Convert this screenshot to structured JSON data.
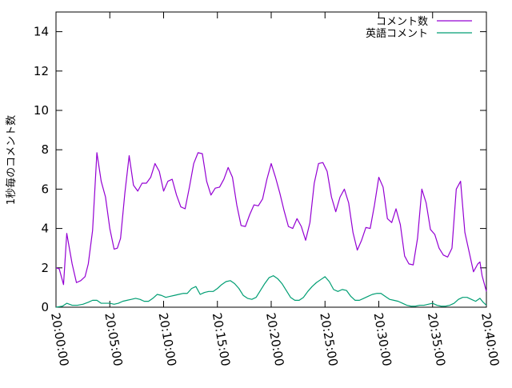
{
  "chart_data": {
    "type": "line",
    "title": "",
    "xlabel": "",
    "ylabel": "1秒毎のコメント数",
    "ylim": [
      0,
      15
    ],
    "yticks": [
      0,
      2,
      4,
      6,
      8,
      10,
      12,
      14
    ],
    "xlim_minutes": [
      0,
      40
    ],
    "xtick_labels": [
      "20:00:00",
      "20:05:00",
      "20:10:00",
      "20:15:00",
      "20:20:00",
      "20:25:00",
      "20:30:00",
      "20:35:00",
      "20:40:00"
    ],
    "xtick_minutes": [
      0,
      5,
      10,
      15,
      20,
      25,
      30,
      35,
      40
    ],
    "legend_position": "top-right",
    "grid": false,
    "series": [
      {
        "name": "コメント数",
        "color": "#9400D3",
        "points": [
          [
            0,
            2
          ],
          [
            0.3,
            1.95
          ],
          [
            0.7,
            1.15
          ],
          [
            1.0,
            3.75
          ],
          [
            1.5,
            2.2
          ],
          [
            1.9,
            1.25
          ],
          [
            2.3,
            1.35
          ],
          [
            2.7,
            1.55
          ],
          [
            3.0,
            2.2
          ],
          [
            3.4,
            3.9
          ],
          [
            3.8,
            7.85
          ],
          [
            4.2,
            6.4
          ],
          [
            4.6,
            5.6
          ],
          [
            5.0,
            4.0
          ],
          [
            5.4,
            2.95
          ],
          [
            5.7,
            3.0
          ],
          [
            6.0,
            3.5
          ],
          [
            6.4,
            5.8
          ],
          [
            6.8,
            7.7
          ],
          [
            7.2,
            6.2
          ],
          [
            7.6,
            5.9
          ],
          [
            8.0,
            6.3
          ],
          [
            8.4,
            6.3
          ],
          [
            8.8,
            6.6
          ],
          [
            9.2,
            7.3
          ],
          [
            9.6,
            6.9
          ],
          [
            10.0,
            5.9
          ],
          [
            10.4,
            6.4
          ],
          [
            10.8,
            6.5
          ],
          [
            11.2,
            5.7
          ],
          [
            11.6,
            5.1
          ],
          [
            12.0,
            5.0
          ],
          [
            12.4,
            6.1
          ],
          [
            12.8,
            7.3
          ],
          [
            13.2,
            7.85
          ],
          [
            13.6,
            7.8
          ],
          [
            14.0,
            6.4
          ],
          [
            14.4,
            5.7
          ],
          [
            14.8,
            6.05
          ],
          [
            15.2,
            6.1
          ],
          [
            15.6,
            6.5
          ],
          [
            16.0,
            7.1
          ],
          [
            16.4,
            6.6
          ],
          [
            16.8,
            5.2
          ],
          [
            17.2,
            4.15
          ],
          [
            17.6,
            4.1
          ],
          [
            18.0,
            4.7
          ],
          [
            18.4,
            5.2
          ],
          [
            18.8,
            5.15
          ],
          [
            19.2,
            5.5
          ],
          [
            19.6,
            6.5
          ],
          [
            20.0,
            7.3
          ],
          [
            20.4,
            6.6
          ],
          [
            20.8,
            5.8
          ],
          [
            21.2,
            4.9
          ],
          [
            21.6,
            4.1
          ],
          [
            22.0,
            4.0
          ],
          [
            22.4,
            4.5
          ],
          [
            22.8,
            4.1
          ],
          [
            23.2,
            3.4
          ],
          [
            23.6,
            4.3
          ],
          [
            24.0,
            6.3
          ],
          [
            24.4,
            7.3
          ],
          [
            24.8,
            7.35
          ],
          [
            25.2,
            6.9
          ],
          [
            25.6,
            5.6
          ],
          [
            26.0,
            4.85
          ],
          [
            26.4,
            5.6
          ],
          [
            26.8,
            6.0
          ],
          [
            27.2,
            5.3
          ],
          [
            27.6,
            3.8
          ],
          [
            28.0,
            2.9
          ],
          [
            28.4,
            3.4
          ],
          [
            28.8,
            4.05
          ],
          [
            29.2,
            4.0
          ],
          [
            29.6,
            5.2
          ],
          [
            30.0,
            6.6
          ],
          [
            30.4,
            6.1
          ],
          [
            30.8,
            4.5
          ],
          [
            31.2,
            4.3
          ],
          [
            31.6,
            5.0
          ],
          [
            32.0,
            4.2
          ],
          [
            32.4,
            2.6
          ],
          [
            32.8,
            2.2
          ],
          [
            33.2,
            2.15
          ],
          [
            33.6,
            3.5
          ],
          [
            34.0,
            6.0
          ],
          [
            34.4,
            5.3
          ],
          [
            34.8,
            3.95
          ],
          [
            35.2,
            3.7
          ],
          [
            35.6,
            3.0
          ],
          [
            36.0,
            2.65
          ],
          [
            36.4,
            2.55
          ],
          [
            36.8,
            3.0
          ],
          [
            37.2,
            6.0
          ],
          [
            37.6,
            6.4
          ],
          [
            38.0,
            3.8
          ],
          [
            38.4,
            2.8
          ],
          [
            38.8,
            1.8
          ],
          [
            39.2,
            2.2
          ],
          [
            39.4,
            2.3
          ],
          [
            39.6,
            1.6
          ],
          [
            40.0,
            0.8
          ]
        ]
      },
      {
        "name": "英語コメント",
        "color": "#009E73",
        "points": [
          [
            0,
            0
          ],
          [
            0.6,
            0.05
          ],
          [
            1.0,
            0.2
          ],
          [
            1.5,
            0.1
          ],
          [
            2.0,
            0.1
          ],
          [
            2.5,
            0.15
          ],
          [
            3.0,
            0.25
          ],
          [
            3.4,
            0.35
          ],
          [
            3.8,
            0.35
          ],
          [
            4.2,
            0.2
          ],
          [
            4.6,
            0.2
          ],
          [
            5.0,
            0.2
          ],
          [
            5.4,
            0.15
          ],
          [
            5.8,
            0.2
          ],
          [
            6.2,
            0.3
          ],
          [
            6.6,
            0.35
          ],
          [
            7.0,
            0.4
          ],
          [
            7.4,
            0.45
          ],
          [
            7.8,
            0.4
          ],
          [
            8.2,
            0.3
          ],
          [
            8.6,
            0.3
          ],
          [
            9.0,
            0.45
          ],
          [
            9.4,
            0.65
          ],
          [
            9.8,
            0.6
          ],
          [
            10.2,
            0.5
          ],
          [
            10.6,
            0.55
          ],
          [
            11.0,
            0.6
          ],
          [
            11.4,
            0.65
          ],
          [
            11.8,
            0.7
          ],
          [
            12.2,
            0.7
          ],
          [
            12.6,
            0.95
          ],
          [
            13.0,
            1.05
          ],
          [
            13.4,
            0.65
          ],
          [
            13.8,
            0.75
          ],
          [
            14.2,
            0.8
          ],
          [
            14.6,
            0.8
          ],
          [
            15.0,
            0.95
          ],
          [
            15.4,
            1.15
          ],
          [
            15.8,
            1.3
          ],
          [
            16.2,
            1.35
          ],
          [
            16.6,
            1.2
          ],
          [
            17.0,
            0.95
          ],
          [
            17.4,
            0.6
          ],
          [
            17.8,
            0.45
          ],
          [
            18.2,
            0.4
          ],
          [
            18.6,
            0.5
          ],
          [
            19.0,
            0.85
          ],
          [
            19.4,
            1.2
          ],
          [
            19.8,
            1.5
          ],
          [
            20.2,
            1.6
          ],
          [
            20.6,
            1.45
          ],
          [
            21.0,
            1.2
          ],
          [
            21.4,
            0.85
          ],
          [
            21.8,
            0.5
          ],
          [
            22.2,
            0.35
          ],
          [
            22.6,
            0.35
          ],
          [
            23.0,
            0.5
          ],
          [
            23.4,
            0.8
          ],
          [
            23.8,
            1.05
          ],
          [
            24.2,
            1.25
          ],
          [
            24.6,
            1.4
          ],
          [
            25.0,
            1.55
          ],
          [
            25.4,
            1.3
          ],
          [
            25.8,
            0.9
          ],
          [
            26.2,
            0.8
          ],
          [
            26.6,
            0.9
          ],
          [
            27.0,
            0.85
          ],
          [
            27.4,
            0.55
          ],
          [
            27.8,
            0.35
          ],
          [
            28.2,
            0.35
          ],
          [
            28.6,
            0.45
          ],
          [
            29.0,
            0.55
          ],
          [
            29.4,
            0.65
          ],
          [
            29.8,
            0.7
          ],
          [
            30.2,
            0.7
          ],
          [
            30.6,
            0.55
          ],
          [
            31.0,
            0.4
          ],
          [
            31.4,
            0.35
          ],
          [
            31.8,
            0.3
          ],
          [
            32.2,
            0.2
          ],
          [
            32.6,
            0.1
          ],
          [
            33.0,
            0.05
          ],
          [
            33.4,
            0.05
          ],
          [
            33.8,
            0.1
          ],
          [
            34.2,
            0.1
          ],
          [
            34.6,
            0.15
          ],
          [
            35.0,
            0.2
          ],
          [
            35.4,
            0.1
          ],
          [
            35.8,
            0.05
          ],
          [
            36.2,
            0.05
          ],
          [
            36.6,
            0.1
          ],
          [
            37.0,
            0.2
          ],
          [
            37.4,
            0.4
          ],
          [
            37.8,
            0.5
          ],
          [
            38.2,
            0.5
          ],
          [
            38.6,
            0.4
          ],
          [
            39.0,
            0.3
          ],
          [
            39.4,
            0.45
          ],
          [
            39.7,
            0.25
          ],
          [
            40.0,
            0.1
          ]
        ]
      }
    ]
  }
}
